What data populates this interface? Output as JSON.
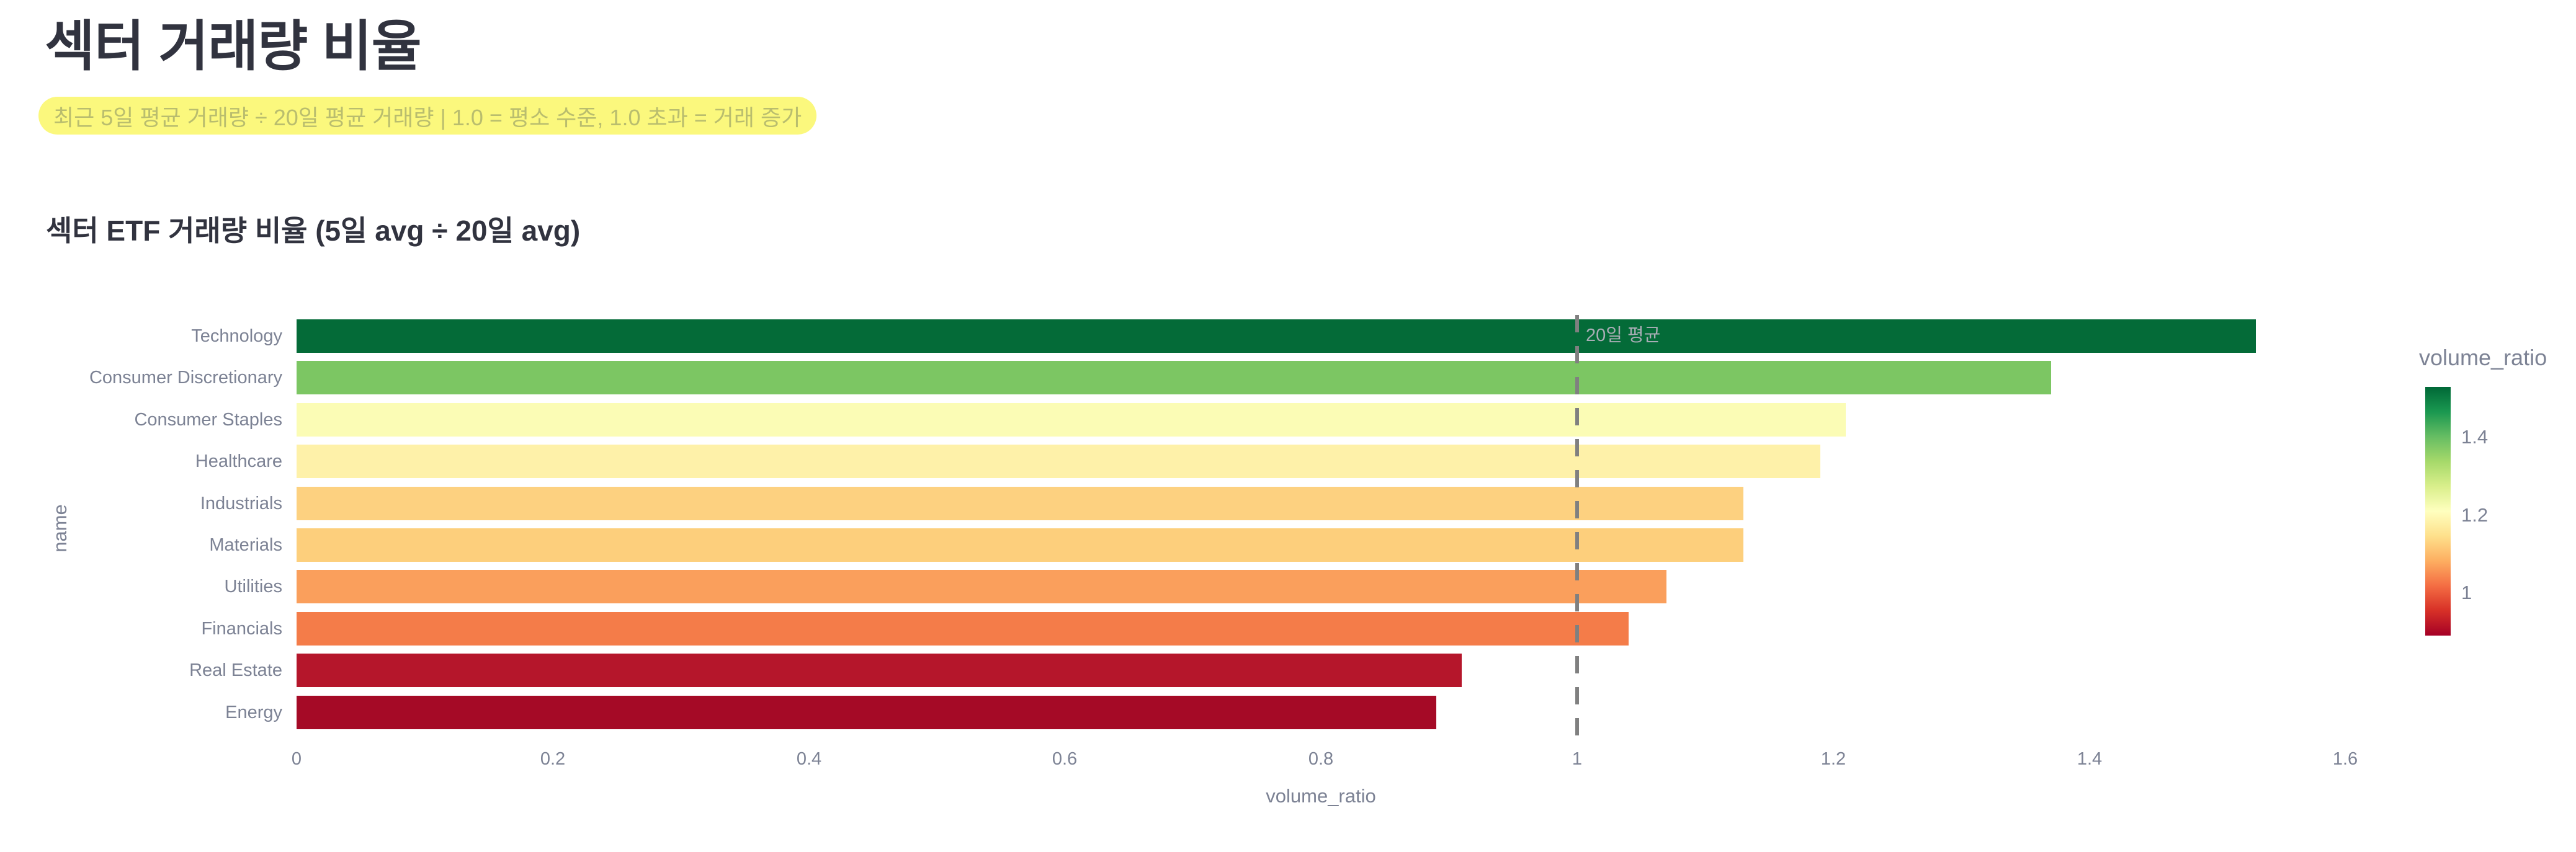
{
  "page": {
    "title": "섹터 거래량 비율",
    "subtitle": "최근 5일 평균 거래량 ÷ 20일 평균 거래량 | 1.0 = 평소 수준, 1.0 초과 = 거래 증가",
    "colors": {
      "title_text": "#31333F",
      "highlight_background": "#FBF87D",
      "highlight_text": "#B9BD6E",
      "axis_text": "#7C8294",
      "background": "#FFFFFF"
    }
  },
  "chart_data": {
    "type": "bar",
    "orientation": "horizontal",
    "title": "섹터 ETF 거래량 비율 (5일 avg ÷ 20일 avg)",
    "xlabel": "volume_ratio",
    "ylabel": "name",
    "xlim": [
      0,
      1.65
    ],
    "xticks": [
      0,
      0.2,
      0.4,
      0.6,
      0.8,
      1,
      1.2,
      1.4,
      1.6
    ],
    "grid": false,
    "categories": [
      "Technology",
      "Consumer Discretionary",
      "Consumer Staples",
      "Healthcare",
      "Industrials",
      "Materials",
      "Utilities",
      "Financials",
      "Real Estate",
      "Energy"
    ],
    "values": [
      1.53,
      1.37,
      1.21,
      1.19,
      1.13,
      1.13,
      1.07,
      1.04,
      0.91,
      0.89
    ],
    "bar_colors": [
      "#046B38",
      "#7CC663",
      "#FBFCB5",
      "#FEF1A9",
      "#FDD180",
      "#FDCF7C",
      "#FA9F5C",
      "#F47C49",
      "#B5162B",
      "#A50A26"
    ],
    "reference_line": {
      "value": 1.0,
      "label": "20일 평균",
      "style": "dashed",
      "color": "#808080"
    },
    "colorbar": {
      "title": "volume_ratio",
      "ticks": [
        1,
        1.2,
        1.4
      ],
      "domain": [
        0.89,
        1.53
      ],
      "colormap": "RdYlGn",
      "position": "right"
    }
  }
}
